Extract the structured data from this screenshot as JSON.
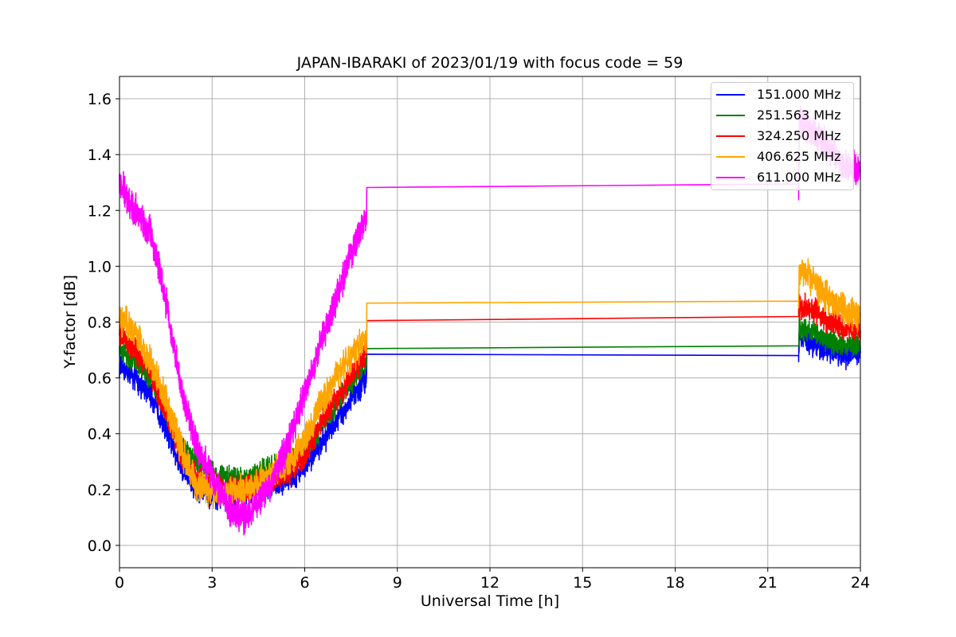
{
  "chart_data": {
    "type": "line",
    "title": "JAPAN-IBARAKI of 2023/01/19 with focus code = 59",
    "xlabel": "Universal Time [h]",
    "ylabel": "Y-factor [dB]",
    "xlim": [
      0,
      24
    ],
    "ylim": [
      -0.08,
      1.68
    ],
    "xticks": [
      "0",
      "3",
      "6",
      "9",
      "12",
      "15",
      "18",
      "21",
      "24"
    ],
    "yticks": [
      "0.0",
      "0.2",
      "0.4",
      "0.6",
      "0.8",
      "1.0",
      "1.2",
      "1.4",
      "1.6"
    ],
    "grid": true,
    "legend_position": "top-right",
    "series": [
      {
        "name": "151.000 MHz",
        "color": "#0000ff",
        "noise": 0.04,
        "points": [
          [
            0,
            0.64
          ],
          [
            0.5,
            0.6
          ],
          [
            1,
            0.54
          ],
          [
            1.5,
            0.42
          ],
          [
            2,
            0.28
          ],
          [
            2.5,
            0.2
          ],
          [
            3,
            0.18
          ],
          [
            3.5,
            0.17
          ],
          [
            4,
            0.2
          ],
          [
            4.5,
            0.2
          ],
          [
            5,
            0.22
          ],
          [
            5.5,
            0.24
          ],
          [
            6,
            0.28
          ],
          [
            6.5,
            0.36
          ],
          [
            7,
            0.44
          ],
          [
            7.5,
            0.52
          ],
          [
            8,
            0.6
          ],
          [
            8.01,
            0.685
          ],
          [
            22,
            0.68
          ],
          [
            22.02,
            0.76
          ],
          [
            22.5,
            0.72
          ],
          [
            23,
            0.7
          ],
          [
            23.5,
            0.68
          ],
          [
            24,
            0.69
          ]
        ]
      },
      {
        "name": "251.563 MHz",
        "color": "#008000",
        "noise": 0.035,
        "points": [
          [
            0,
            0.7
          ],
          [
            0.5,
            0.66
          ],
          [
            1,
            0.6
          ],
          [
            1.5,
            0.48
          ],
          [
            2,
            0.36
          ],
          [
            2.5,
            0.3
          ],
          [
            3,
            0.26
          ],
          [
            3.5,
            0.24
          ],
          [
            4,
            0.24
          ],
          [
            4.5,
            0.26
          ],
          [
            5,
            0.28
          ],
          [
            5.5,
            0.3
          ],
          [
            6,
            0.34
          ],
          [
            6.5,
            0.42
          ],
          [
            7,
            0.5
          ],
          [
            7.5,
            0.58
          ],
          [
            8,
            0.66
          ],
          [
            8.01,
            0.705
          ],
          [
            22,
            0.715
          ],
          [
            22.02,
            0.78
          ],
          [
            22.5,
            0.76
          ],
          [
            23,
            0.73
          ],
          [
            23.5,
            0.72
          ],
          [
            24,
            0.72
          ]
        ]
      },
      {
        "name": "324.250 MHz",
        "color": "#ff0000",
        "noise": 0.04,
        "points": [
          [
            0,
            0.76
          ],
          [
            0.5,
            0.7
          ],
          [
            1,
            0.62
          ],
          [
            1.5,
            0.48
          ],
          [
            2,
            0.32
          ],
          [
            2.5,
            0.24
          ],
          [
            3,
            0.22
          ],
          [
            3.5,
            0.2
          ],
          [
            4,
            0.2
          ],
          [
            4.5,
            0.22
          ],
          [
            5,
            0.24
          ],
          [
            5.5,
            0.26
          ],
          [
            6,
            0.32
          ],
          [
            6.5,
            0.44
          ],
          [
            7,
            0.52
          ],
          [
            7.5,
            0.6
          ],
          [
            8,
            0.7
          ],
          [
            8.01,
            0.805
          ],
          [
            22,
            0.82
          ],
          [
            22.02,
            0.86
          ],
          [
            22.5,
            0.84
          ],
          [
            23,
            0.8
          ],
          [
            23.5,
            0.78
          ],
          [
            24,
            0.77
          ]
        ]
      },
      {
        "name": "406.625 MHz",
        "color": "#ffa500",
        "noise": 0.05,
        "points": [
          [
            0,
            0.82
          ],
          [
            0.5,
            0.76
          ],
          [
            1,
            0.66
          ],
          [
            1.5,
            0.52
          ],
          [
            2,
            0.34
          ],
          [
            2.5,
            0.22
          ],
          [
            3,
            0.2
          ],
          [
            3.5,
            0.18
          ],
          [
            4,
            0.2
          ],
          [
            4.5,
            0.22
          ],
          [
            5,
            0.26
          ],
          [
            5.5,
            0.3
          ],
          [
            6,
            0.38
          ],
          [
            6.5,
            0.5
          ],
          [
            7,
            0.6
          ],
          [
            7.5,
            0.68
          ],
          [
            8,
            0.74
          ],
          [
            8.01,
            0.868
          ],
          [
            22,
            0.875
          ],
          [
            22.02,
            1.0
          ],
          [
            22.5,
            0.94
          ],
          [
            23,
            0.88
          ],
          [
            23.5,
            0.84
          ],
          [
            24,
            0.82
          ]
        ]
      },
      {
        "name": "611.000 MHz",
        "color": "#ff00ff",
        "noise": 0.05,
        "points": [
          [
            0,
            1.3
          ],
          [
            0.5,
            1.2
          ],
          [
            1,
            1.12
          ],
          [
            1.5,
            0.88
          ],
          [
            2,
            0.56
          ],
          [
            2.5,
            0.36
          ],
          [
            3,
            0.24
          ],
          [
            3.5,
            0.14
          ],
          [
            4,
            0.1
          ],
          [
            4.5,
            0.16
          ],
          [
            5,
            0.24
          ],
          [
            5.5,
            0.38
          ],
          [
            6,
            0.54
          ],
          [
            6.5,
            0.72
          ],
          [
            7,
            0.88
          ],
          [
            7.5,
            1.04
          ],
          [
            8,
            1.18
          ],
          [
            8.01,
            1.282
          ],
          [
            22,
            1.295
          ],
          [
            22.02,
            1.52
          ],
          [
            22.5,
            1.48
          ],
          [
            23,
            1.42
          ],
          [
            23.5,
            1.36
          ],
          [
            24,
            1.34
          ]
        ]
      }
    ]
  }
}
